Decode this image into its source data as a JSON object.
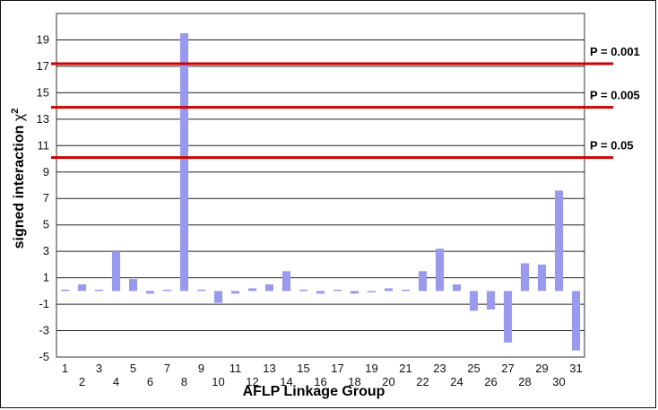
{
  "chart_data": {
    "type": "bar",
    "xlabel": "AFLP Linkage Group",
    "ylabel_main": "signed interaction ",
    "ylabel_chi": "χ",
    "ylabel_sup": "2",
    "ylim": [
      -5,
      21
    ],
    "yticks": [
      -5,
      -3,
      -1,
      1,
      3,
      5,
      7,
      9,
      11,
      13,
      15,
      17,
      19
    ],
    "ytick_labels": [
      "-5",
      "-3",
      "-1",
      "1",
      "3",
      "5",
      "7",
      "9",
      "11",
      "13",
      "15",
      "17",
      "19"
    ],
    "grid": true,
    "categories": [
      "1",
      "2",
      "3",
      "4",
      "5",
      "6",
      "7",
      "8",
      "9",
      "10",
      "11",
      "12",
      "13",
      "14",
      "15",
      "16",
      "17",
      "18",
      "19",
      "20",
      "21",
      "22",
      "23",
      "24",
      "25",
      "26",
      "27",
      "28",
      "29",
      "30",
      "31"
    ],
    "values": [
      0.1,
      0.5,
      0.1,
      3.0,
      0.9,
      -0.2,
      0.1,
      19.5,
      0.1,
      -0.9,
      -0.2,
      0.2,
      0.5,
      1.5,
      0.1,
      -0.2,
      0.1,
      -0.2,
      -0.1,
      0.2,
      0.1,
      1.5,
      3.2,
      0.5,
      -1.5,
      -1.4,
      -3.9,
      2.1,
      2.0,
      7.6,
      -4.5
    ],
    "bar_color": "#9999ee",
    "thresholds": [
      {
        "label": "P = 0.001",
        "value": 17.2
      },
      {
        "label": "P = 0.005",
        "value": 13.9
      },
      {
        "label": "P = 0.05",
        "value": 10.1
      }
    ],
    "threshold_color": "#cc0000"
  }
}
